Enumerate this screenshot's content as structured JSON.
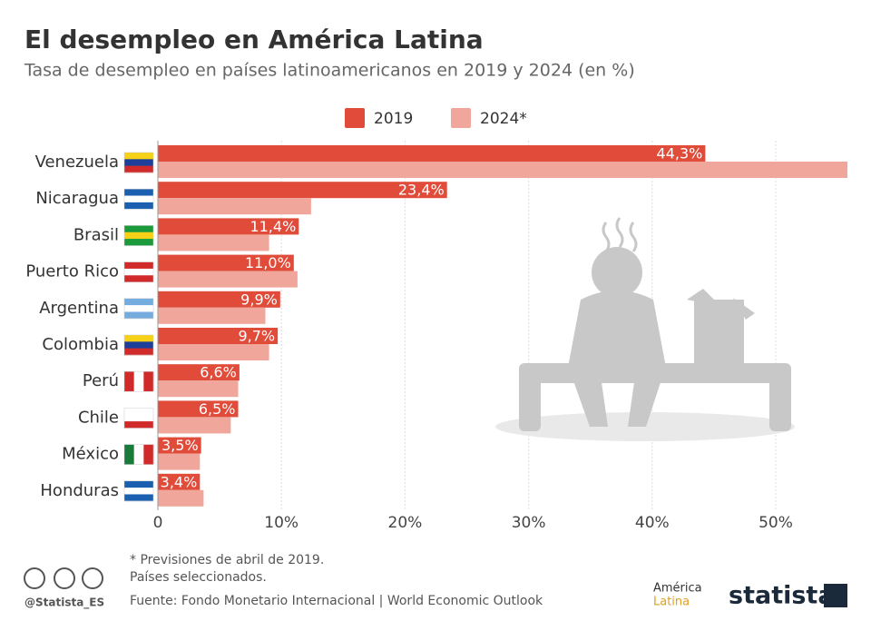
{
  "chart_data": {
    "type": "hbar",
    "title": "El desempleo en América Latina",
    "subtitle": "Tasa de desempleo en países latinoamericanos en 2019 y 2024 (en %)",
    "categories": [
      "Venezuela",
      "Nicaragua",
      "Brasil",
      "Puerto Rico",
      "Argentina",
      "Colombia",
      "Perú",
      "Chile",
      "México",
      "Honduras"
    ],
    "series": [
      {
        "name": "2019",
        "color": "#e04b3a",
        "values": [
          44.3,
          23.4,
          11.4,
          11.0,
          9.9,
          9.7,
          6.6,
          6.5,
          3.5,
          3.4
        ],
        "value_labels": [
          "44,3%",
          "23,4%",
          "11,4%",
          "11,0%",
          "9,9%",
          "9,7%",
          "6,6%",
          "6,5%",
          "3,5%",
          "3,4%"
        ]
      },
      {
        "name": "2024*",
        "color": "#f0a69b",
        "values": [
          55.8,
          12.4,
          9.0,
          11.3,
          8.7,
          9.0,
          6.5,
          5.9,
          3.4,
          3.7
        ]
      }
    ],
    "xlim": [
      0,
      56
    ],
    "xticks": [
      0,
      {
        "value": 10,
        "label": "10%"
      },
      {
        "value": 20,
        "label": "20%"
      },
      {
        "value": 30,
        "label": "30%"
      },
      {
        "value": 40,
        "label": "40%"
      },
      {
        "value": 50,
        "label": "50%"
      }
    ],
    "grid": true
  },
  "notes": [
    "* Previsiones de abril de 2019.",
    "Países seleccionados."
  ],
  "source": "Fuente: Fondo Monetario Internacional | World Economic Outlook",
  "handle": "@Statista_ES",
  "logos": {
    "region": [
      "América",
      "Latina"
    ],
    "brand": "statista"
  }
}
